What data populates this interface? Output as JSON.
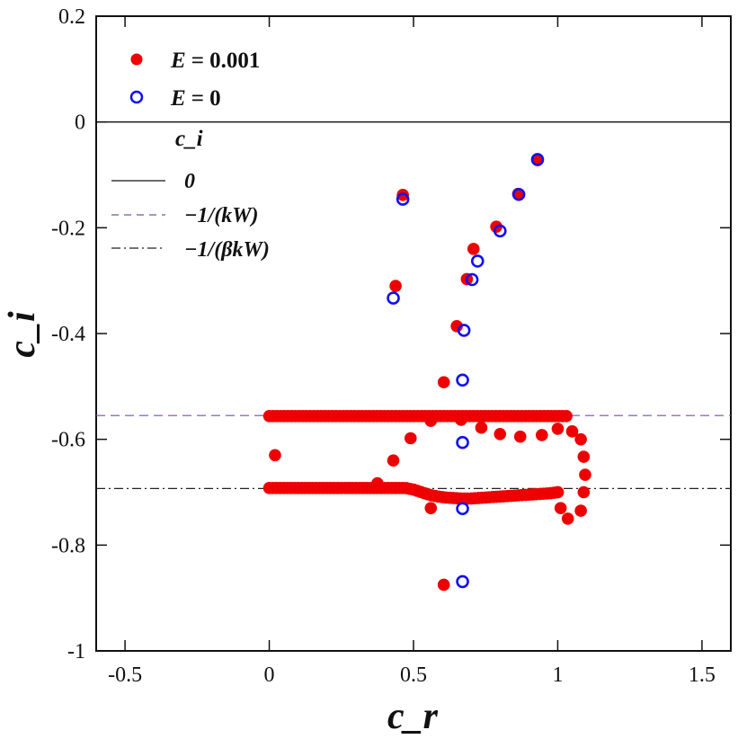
{
  "chart_data": {
    "type": "scatter",
    "xlabel": "c_r",
    "ylabel": "c_i",
    "xlim": [
      -0.6,
      1.6
    ],
    "ylim": [
      -1.0,
      0.2
    ],
    "xticks": [
      -0.5,
      0,
      0.5,
      1,
      1.5
    ],
    "xtick_labels": [
      "-0.5",
      "0",
      "0.5",
      "1",
      "1.5"
    ],
    "yticks": [
      -1,
      -0.8,
      -0.6,
      -0.4,
      -0.2,
      0,
      0.2
    ],
    "ytick_labels": [
      "-1",
      "-0.8",
      "-0.6",
      "-0.4",
      "-0.2",
      "0",
      "0.2"
    ],
    "grid": false,
    "legend_placement": "top-left",
    "series": [
      {
        "name": "E = 0.001",
        "label_lhs": "E",
        "label_rhs": "= 0.001",
        "marker": "filled-circle",
        "color": "#ee0000",
        "points": [
          [
            0.463,
            -0.138
          ],
          [
            0.438,
            -0.31
          ],
          [
            0.708,
            -0.24
          ],
          [
            0.685,
            -0.297
          ],
          [
            0.787,
            -0.198
          ],
          [
            0.863,
            -0.136
          ],
          [
            0.93,
            -0.072
          ],
          [
            0.65,
            -0.386
          ],
          [
            0.605,
            -0.492
          ],
          [
            0.02,
            -0.63
          ],
          [
            0.49,
            -0.598
          ],
          [
            0.43,
            -0.64
          ],
          [
            0.375,
            -0.683
          ],
          [
            0.56,
            -0.73
          ],
          [
            0.605,
            -0.875
          ],
          [
            0.56,
            -0.565
          ],
          [
            0.665,
            -0.563
          ],
          [
            0.735,
            -0.578
          ],
          [
            0.8,
            -0.59
          ],
          [
            0.87,
            -0.595
          ],
          [
            0.945,
            -0.592
          ],
          [
            1.0,
            -0.58
          ],
          [
            1.05,
            -0.585
          ],
          [
            1.08,
            -0.6
          ],
          [
            1.09,
            -0.633
          ],
          [
            1.095,
            -0.667
          ],
          [
            1.09,
            -0.7
          ],
          [
            1.08,
            -0.735
          ],
          [
            1.035,
            -0.75
          ],
          [
            1.0,
            -0.7
          ],
          [
            1.01,
            -0.73
          ]
        ],
        "bands": [
          {
            "from": 0.0,
            "to": 1.03,
            "values": [
              -0.556,
              -0.556
            ]
          },
          {
            "from": 0.0,
            "to": 1.0,
            "values": [
              -0.692,
              -0.692,
              -0.692,
              -0.692,
              -0.692,
              -0.692,
              -0.692,
              -0.692,
              -0.692,
              -0.692,
              -0.692,
              -0.692,
              -0.692,
              -0.692,
              -0.692,
              -0.692,
              -0.692,
              -0.692,
              -0.695,
              -0.7,
              -0.705,
              -0.708,
              -0.71,
              -0.711,
              -0.712,
              -0.712,
              -0.711,
              -0.71,
              -0.709,
              -0.708,
              -0.707,
              -0.706,
              -0.705,
              -0.704,
              -0.703,
              -0.702,
              -0.7
            ]
          }
        ]
      },
      {
        "name": "E = 0",
        "label_lhs": "E",
        "label_rhs": "= 0",
        "marker": "open-circle",
        "color": "#1111ee",
        "points": [
          [
            0.463,
            -0.146
          ],
          [
            0.43,
            -0.333
          ],
          [
            0.722,
            -0.263
          ],
          [
            0.703,
            -0.298
          ],
          [
            0.8,
            -0.206
          ],
          [
            0.865,
            -0.137
          ],
          [
            0.93,
            -0.071
          ],
          [
            0.675,
            -0.394
          ],
          [
            0.67,
            -0.488
          ],
          [
            0.67,
            -0.606
          ],
          [
            0.67,
            -0.731
          ],
          [
            0.67,
            -0.869
          ]
        ]
      }
    ],
    "reference_lines": {
      "title": "c_i",
      "lines": [
        {
          "label": "0",
          "value": 0,
          "style": "solid",
          "color": "#111111"
        },
        {
          "label": "−1/(kW)",
          "value": -0.555,
          "style": "dashed",
          "color": "#7a4fa8"
        },
        {
          "label": "−1/(βkW)",
          "value": -0.693,
          "style": "dashdot",
          "color": "#222222"
        }
      ]
    }
  }
}
